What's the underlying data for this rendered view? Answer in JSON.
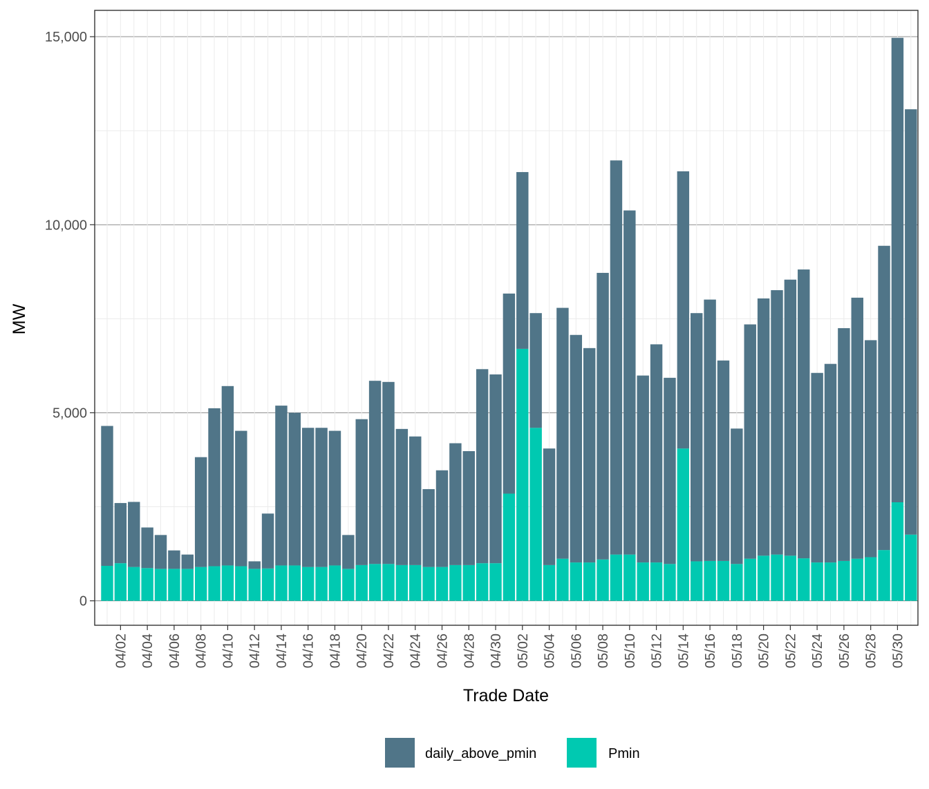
{
  "chart_data": {
    "type": "bar",
    "stacked": true,
    "xlabel": "Trade Date",
    "ylabel": "MW",
    "ylim": [
      -650,
      15700
    ],
    "y_ticks": [
      0,
      5000,
      10000,
      15000
    ],
    "y_tick_labels": [
      "0",
      "5,000",
      "10,000",
      "15,000"
    ],
    "x_tick_labels": [
      "04/02",
      "04/04",
      "04/06",
      "04/08",
      "04/10",
      "04/12",
      "04/14",
      "04/16",
      "04/18",
      "04/20",
      "04/22",
      "04/24",
      "04/26",
      "04/28",
      "04/30",
      "05/02",
      "05/04",
      "05/06",
      "05/08",
      "05/10",
      "05/12",
      "05/14",
      "05/16",
      "05/18",
      "05/20",
      "05/22",
      "05/24",
      "05/26",
      "05/28",
      "05/30"
    ],
    "grid": true,
    "legend_position": "bottom",
    "categories": [
      "04/01",
      "04/02",
      "04/03",
      "04/04",
      "04/05",
      "04/06",
      "04/07",
      "04/08",
      "04/09",
      "04/10",
      "04/11",
      "04/12",
      "04/13",
      "04/14",
      "04/15",
      "04/16",
      "04/17",
      "04/18",
      "04/19",
      "04/20",
      "04/21",
      "04/22",
      "04/23",
      "04/24",
      "04/25",
      "04/26",
      "04/27",
      "04/28",
      "04/29",
      "04/30",
      "05/01",
      "05/02",
      "05/03",
      "05/04",
      "05/05",
      "05/06",
      "05/07",
      "05/08",
      "05/09",
      "05/10",
      "05/11",
      "05/12",
      "05/13",
      "05/14",
      "05/15",
      "05/16",
      "05/17",
      "05/18",
      "05/19",
      "05/20",
      "05/21",
      "05/22",
      "05/23",
      "05/24",
      "05/25",
      "05/26",
      "05/27",
      "05/28",
      "05/29",
      "05/30",
      "05/31"
    ],
    "series": [
      {
        "name": "Pmin",
        "color": "#00c9b1",
        "values": [
          930,
          1000,
          900,
          870,
          850,
          850,
          850,
          900,
          920,
          940,
          920,
          850,
          860,
          940,
          940,
          900,
          900,
          940,
          850,
          950,
          980,
          980,
          950,
          950,
          900,
          900,
          950,
          950,
          1000,
          1000,
          2850,
          6700,
          4600,
          950,
          1120,
          1020,
          1020,
          1100,
          1230,
          1230,
          1020,
          1020,
          980,
          4050,
          1050,
          1060,
          1060,
          980,
          1120,
          1200,
          1230,
          1200,
          1130,
          1020,
          1020,
          1060,
          1120,
          1160,
          1350,
          2620,
          1760
        ]
      },
      {
        "name": "daily_above_pmin",
        "color": "#507588",
        "values": [
          3720,
          1600,
          1730,
          1080,
          900,
          490,
          380,
          2920,
          4200,
          4770,
          3600,
          200,
          1460,
          4250,
          4060,
          3700,
          3700,
          3580,
          900,
          3880,
          4870,
          4840,
          3620,
          3420,
          2070,
          2570,
          3240,
          3030,
          5160,
          5020,
          5320,
          4700,
          3050,
          3100,
          6670,
          6050,
          5700,
          7620,
          10480,
          9150,
          4970,
          5800,
          4950,
          7370,
          6600,
          6950,
          5330,
          3600,
          6230,
          6840,
          7030,
          7340,
          7680,
          5040,
          5280,
          6190,
          6940,
          5770,
          8090,
          12350,
          11310
        ]
      }
    ],
    "legend": [
      "daily_above_pmin",
      "Pmin"
    ]
  }
}
